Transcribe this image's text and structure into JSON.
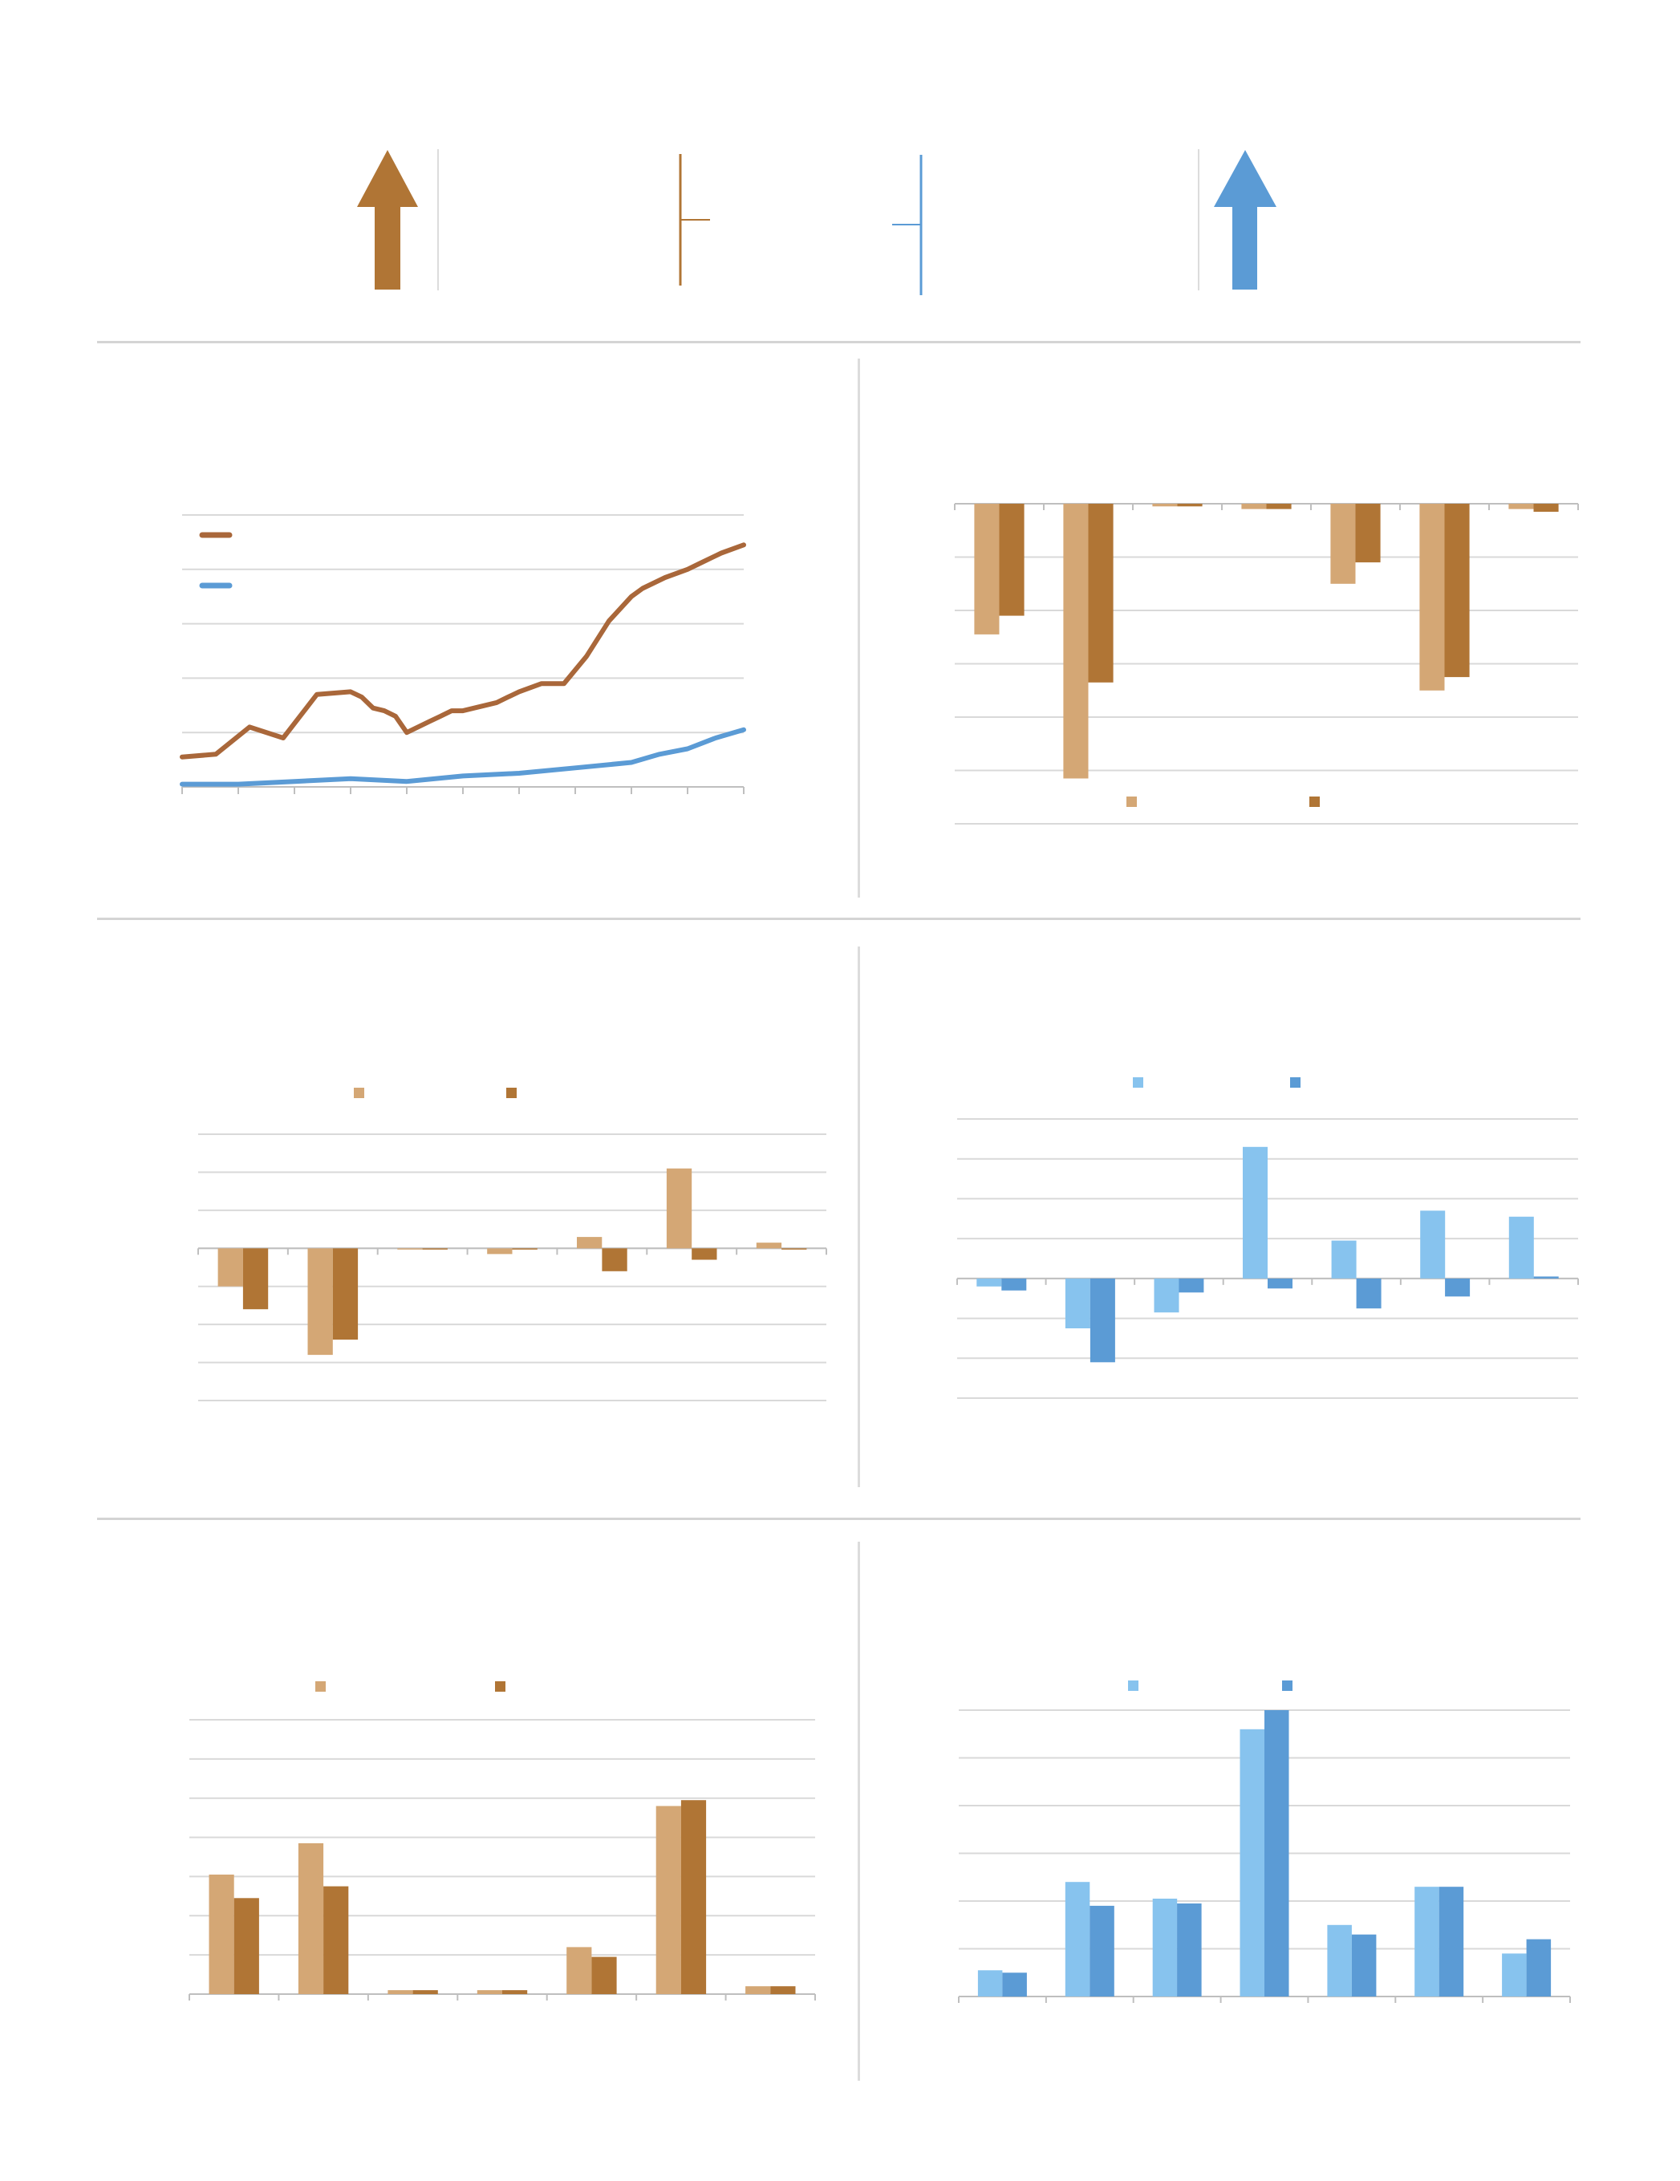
{
  "colors": {
    "brown": "#b07535",
    "tan": "#d4a775",
    "line_brown": "#a9673a",
    "blue": "#5b9bd5",
    "light_blue": "#87c3ee",
    "grid": "#d9d9d9",
    "axis": "#bfbfbf",
    "rule": "#d4d4d4"
  },
  "header": {
    "left_arrow_icon": "up-arrow-icon",
    "right_arrow_icon": "up-arrow-icon"
  },
  "chart_data": [
    {
      "type": "line",
      "grid": true,
      "ylim": [
        0,
        100
      ],
      "legend_position": "top-left",
      "series": [
        {
          "color": "#a9673a",
          "x": [
            0,
            6,
            12,
            18,
            24,
            30,
            32,
            34,
            36,
            38,
            40,
            44,
            46,
            48,
            50,
            52,
            54,
            56,
            58,
            60,
            64,
            68,
            72,
            76,
            80,
            82,
            86,
            90,
            92,
            96,
            100
          ],
          "values": [
            11,
            12,
            22,
            18,
            34,
            35,
            33,
            29,
            28,
            26,
            20,
            24,
            26,
            28,
            28,
            29,
            30,
            31,
            33,
            35,
            38,
            38,
            48,
            61,
            70,
            73,
            77,
            80,
            82,
            86,
            89
          ]
        },
        {
          "color": "#5b9bd5",
          "x": [
            0,
            10,
            20,
            30,
            40,
            50,
            60,
            70,
            80,
            85,
            90,
            95,
            100
          ],
          "values": [
            1,
            1,
            2,
            3,
            2,
            4,
            5,
            7,
            9,
            12,
            14,
            18,
            21
          ]
        }
      ]
    },
    {
      "type": "bar",
      "grid": true,
      "ylim": [
        -6,
        0
      ],
      "legend_position": "bottom",
      "categories": [
        "",
        "",
        "",
        "",
        "",
        "",
        ""
      ],
      "series": [
        {
          "color": "#d4a775",
          "values": [
            -2.45,
            -5.15,
            -0.05,
            -0.1,
            -1.5,
            -3.5,
            -0.1
          ]
        },
        {
          "color": "#b07535",
          "values": [
            -2.1,
            -3.35,
            -0.05,
            -0.1,
            -1.1,
            -3.25,
            -0.15
          ]
        }
      ]
    },
    {
      "type": "bar",
      "grid": true,
      "ylim": [
        -4,
        3
      ],
      "legend_position": "top",
      "categories": [
        "",
        "",
        "",
        "",
        "",
        "",
        ""
      ],
      "series": [
        {
          "color": "#d4a775",
          "values": [
            -1.0,
            -2.8,
            0.0,
            -0.15,
            0.3,
            2.1,
            0.15
          ]
        },
        {
          "color": "#b07535",
          "values": [
            -1.6,
            -2.4,
            0.0,
            0.0,
            -0.6,
            -0.3,
            0.0
          ]
        }
      ]
    },
    {
      "type": "bar",
      "grid": true,
      "ylim": [
        -3,
        4
      ],
      "legend_position": "top",
      "categories": [
        "",
        "",
        "",
        "",
        "",
        "",
        ""
      ],
      "series": [
        {
          "color": "#87c3ee",
          "values": [
            -0.2,
            -1.25,
            -0.85,
            3.3,
            0.95,
            1.7,
            1.55
          ]
        },
        {
          "color": "#5b9bd5",
          "values": [
            -0.3,
            -2.1,
            -0.35,
            -0.25,
            -0.75,
            -0.45,
            0.05
          ]
        }
      ]
    },
    {
      "type": "bar",
      "grid": true,
      "ylim": [
        0,
        7
      ],
      "legend_position": "top",
      "categories": [
        "",
        "",
        "",
        "",
        "",
        "",
        ""
      ],
      "series": [
        {
          "color": "#d4a775",
          "values": [
            3.05,
            3.85,
            0.1,
            0.1,
            1.2,
            4.8,
            0.2
          ]
        },
        {
          "color": "#b07535",
          "values": [
            2.45,
            2.75,
            0.1,
            0.1,
            0.95,
            4.95,
            0.2
          ]
        }
      ]
    },
    {
      "type": "bar",
      "grid": true,
      "ylim": [
        0,
        6
      ],
      "legend_position": "top",
      "categories": [
        "",
        "",
        "",
        "",
        "",
        "",
        ""
      ],
      "series": [
        {
          "color": "#87c3ee",
          "values": [
            0.55,
            2.4,
            2.05,
            5.6,
            1.5,
            2.3,
            0.9
          ]
        },
        {
          "color": "#5b9bd5",
          "values": [
            0.5,
            1.9,
            1.95,
            6.0,
            1.3,
            2.3,
            1.2
          ]
        }
      ]
    }
  ]
}
